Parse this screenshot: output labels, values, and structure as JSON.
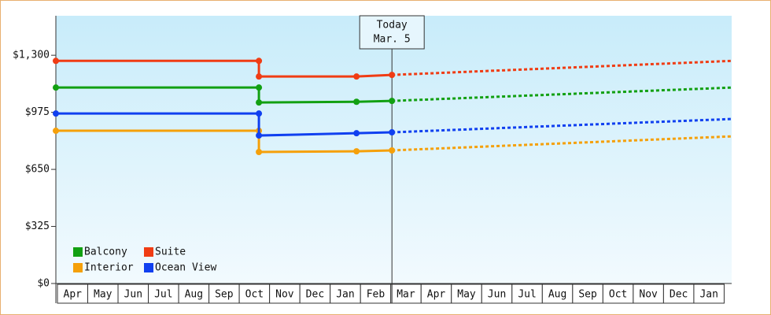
{
  "chart_data": {
    "type": "step-line",
    "categories": [
      "Apr",
      "May",
      "Jun",
      "Jul",
      "Aug",
      "Sep",
      "Oct",
      "Nov",
      "Dec",
      "Jan",
      "Feb",
      "Mar",
      "Apr",
      "May",
      "Jun",
      "Jul",
      "Aug",
      "Sep",
      "Oct",
      "Nov",
      "Dec",
      "Jan"
    ],
    "xlim": [
      0,
      22.3
    ],
    "ylim": [
      0,
      1525
    ],
    "yticks": [
      {
        "value": 0,
        "label": "$0"
      },
      {
        "value": 325,
        "label": "$325"
      },
      {
        "value": 650,
        "label": "$650"
      },
      {
        "value": 975,
        "label": "$975"
      },
      {
        "value": 1300,
        "label": "$1,300"
      }
    ],
    "annotation": {
      "lines": [
        "Today",
        "Mar. 5"
      ],
      "x": 11.09
    },
    "legend": "bottom-left",
    "series": [
      {
        "name": "Balcony",
        "color": "#12a012",
        "x": [
          0,
          6.7,
          6.7,
          9.92,
          11.09
        ],
        "values": [
          1116,
          1116,
          1031,
          1035,
          1040
        ],
        "forecast_x": [
          11.09,
          22.3
        ],
        "forecast_values": [
          1040,
          1116
        ]
      },
      {
        "name": "Suite",
        "color": "#f03c14",
        "x": [
          0,
          6.7,
          6.7,
          9.92,
          11.09
        ],
        "values": [
          1268,
          1268,
          1179,
          1179,
          1188
        ],
        "forecast_x": [
          11.09,
          22.3
        ],
        "forecast_values": [
          1188,
          1268
        ]
      },
      {
        "name": "Interior",
        "color": "#f5a00a",
        "x": [
          0,
          6.7,
          6.7,
          9.92,
          11.09
        ],
        "values": [
          870,
          870,
          749,
          753,
          758
        ],
        "forecast_x": [
          11.09,
          22.3
        ],
        "forecast_values": [
          758,
          838
        ]
      },
      {
        "name": "Ocean View",
        "color": "#1040f0",
        "x": [
          0,
          6.7,
          6.7,
          9.92,
          11.09
        ],
        "values": [
          968,
          968,
          843,
          856,
          861
        ],
        "forecast_x": [
          11.09,
          22.3
        ],
        "forecast_values": [
          861,
          937
        ]
      }
    ]
  }
}
